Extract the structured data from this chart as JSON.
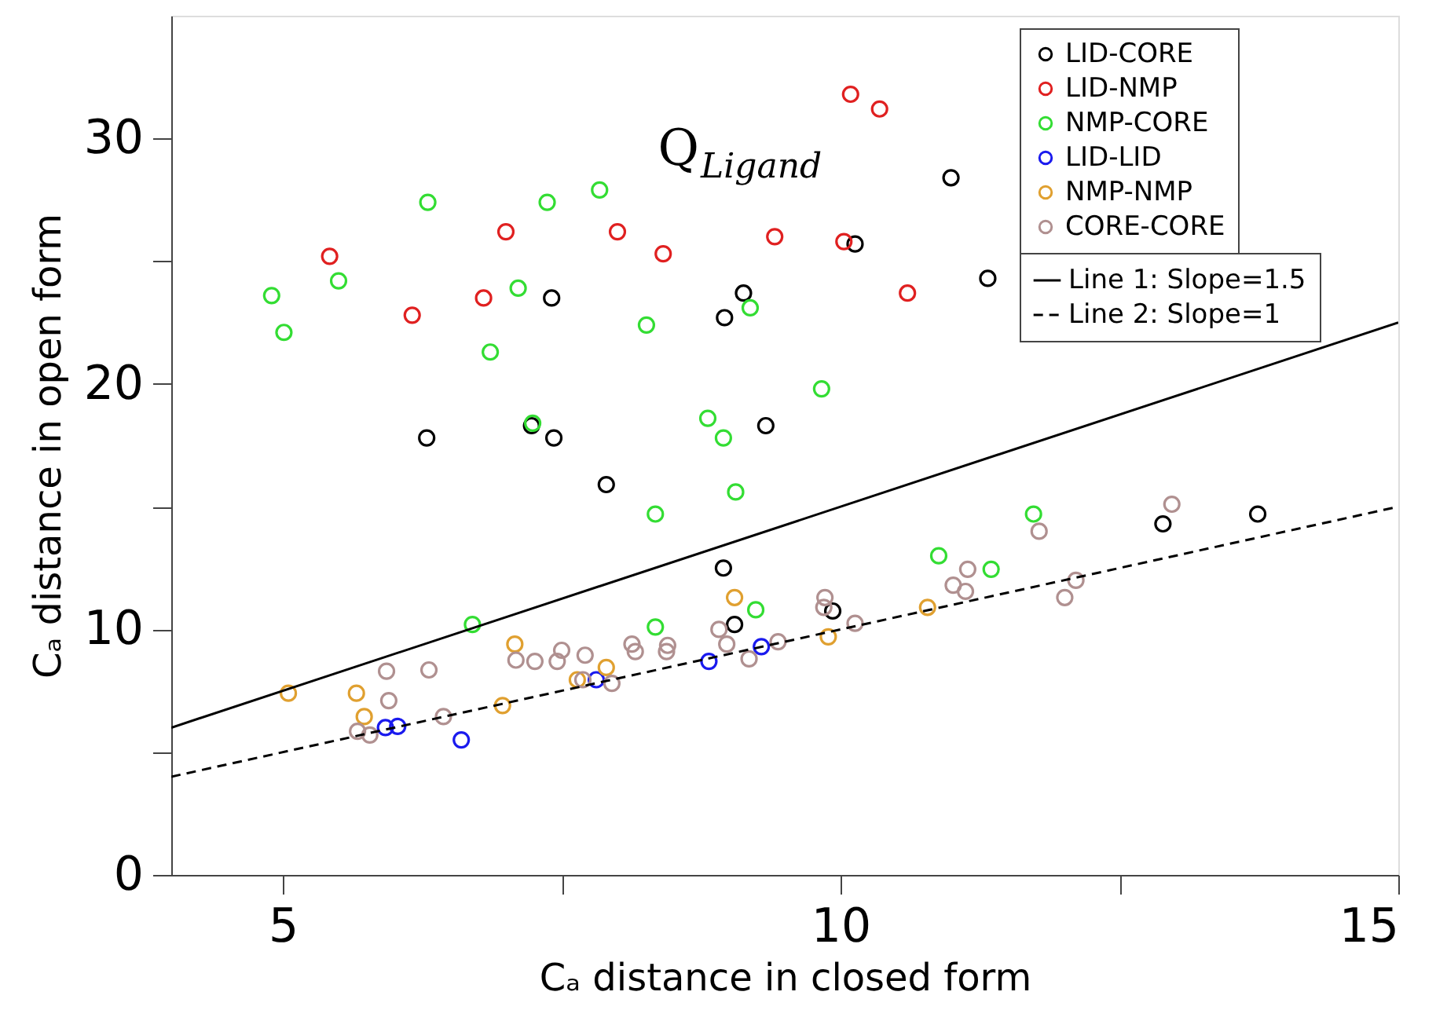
{
  "chart_data": {
    "type": "scatter",
    "xlabel": "Cₐ distance in closed form",
    "ylabel": "Cₐ distance in open form",
    "annotations": [
      "Q$_{Ligand}$"
    ],
    "xlim": [
      4,
      15
    ],
    "ylim": [
      0,
      35
    ],
    "xticks": [
      5,
      {
        "value": 7.5,
        "label": null
      },
      10,
      {
        "value": 12.5,
        "label": null
      },
      15
    ],
    "yticks": [
      0,
      {
        "value": 5,
        "label": null
      },
      10,
      {
        "value": 15,
        "label": null
      },
      20,
      {
        "value": 25,
        "label": null
      },
      30
    ],
    "grid": false,
    "legend": "top right",
    "marker": "circle",
    "series": [
      {
        "name": "LID-CORE",
        "color": "#000000",
        "x": [
          6.29,
          7.23,
          7.41,
          7.43,
          8.96,
          9.13,
          10.13,
          10.99,
          11.32,
          9.33,
          7.9,
          8.95,
          9.05,
          9.93,
          12.89,
          13.74
        ],
        "values": [
          17.8,
          18.3,
          23.5,
          17.8,
          22.7,
          23.7,
          25.7,
          28.4,
          24.3,
          18.3,
          15.9,
          12.5,
          10.2,
          10.75,
          14.3,
          14.7
        ]
      },
      {
        "name": "LID-NMP",
        "color": "#e02020",
        "x": [
          5.42,
          6.16,
          6.8,
          7.0,
          8.0,
          8.41,
          9.41,
          10.03,
          10.09,
          10.35,
          10.6
        ],
        "values": [
          25.2,
          22.8,
          23.5,
          26.2,
          26.2,
          25.3,
          26.0,
          25.8,
          31.8,
          31.2,
          23.7
        ]
      },
      {
        "name": "NMP-CORE",
        "color": "#33dd33",
        "x": [
          4.9,
          5.01,
          5.5,
          6.3,
          6.86,
          7.11,
          7.24,
          7.37,
          7.84,
          8.26,
          8.81,
          8.95,
          9.19,
          9.83,
          8.34,
          9.06,
          6.7,
          8.34,
          9.24,
          10.88,
          11.35,
          11.73
        ],
        "values": [
          23.6,
          22.1,
          24.2,
          27.4,
          21.3,
          23.9,
          18.4,
          27.4,
          27.9,
          22.4,
          18.6,
          17.8,
          23.1,
          19.8,
          14.7,
          15.6,
          10.2,
          10.1,
          10.8,
          13.0,
          12.45,
          14.7
        ]
      },
      {
        "name": "LID-LID",
        "color": "#1a1aee",
        "x": [
          5.92,
          6.03,
          6.6,
          7.81,
          8.82,
          9.29
        ],
        "values": [
          6.0,
          6.05,
          5.5,
          7.95,
          8.7,
          9.3
        ]
      },
      {
        "name": "NMP-NMP",
        "color": "#e0a030",
        "x": [
          5.05,
          5.66,
          5.73,
          6.97,
          7.08,
          7.64,
          7.9,
          9.05,
          9.89,
          10.78
        ],
        "values": [
          7.4,
          7.4,
          6.45,
          6.9,
          9.4,
          7.95,
          8.45,
          11.3,
          9.7,
          10.9
        ]
      },
      {
        "name": "CORE-CORE",
        "color": "#b09090",
        "x": [
          5.67,
          5.78,
          5.93,
          5.95,
          6.31,
          6.44,
          7.09,
          7.26,
          7.46,
          7.5,
          7.71,
          7.69,
          7.95,
          8.13,
          8.16,
          8.45,
          8.44,
          8.91,
          8.98,
          9.18,
          9.44,
          9.86,
          9.85,
          10.13,
          11.01,
          11.14,
          11.12,
          11.78,
          12.01,
          12.11,
          12.97
        ],
        "values": [
          5.85,
          5.7,
          8.3,
          7.1,
          8.35,
          6.45,
          8.75,
          8.7,
          8.7,
          9.15,
          8.95,
          7.95,
          7.8,
          9.4,
          9.1,
          9.35,
          9.1,
          10.0,
          9.4,
          8.8,
          9.5,
          11.3,
          10.9,
          10.25,
          11.8,
          12.45,
          11.55,
          14.0,
          11.3,
          12.0,
          15.1
        ]
      },
      {
        "name": "Line 1: Slope=1.5",
        "type": "line",
        "marker": "none",
        "color": "#000000",
        "line_style": "solid",
        "x": [
          4,
          15
        ],
        "values": [
          6,
          22.5
        ]
      },
      {
        "name": "Line 2: Slope=1",
        "type": "line",
        "marker": "none",
        "color": "#000000",
        "line_style": "dashed",
        "x": [
          4,
          15
        ],
        "values": [
          4,
          15
        ]
      }
    ]
  }
}
